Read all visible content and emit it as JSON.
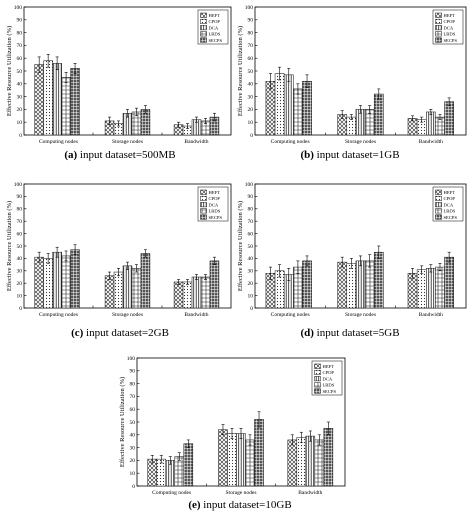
{
  "chart_data": [
    {
      "type": "bar",
      "caption_label": "(a)",
      "caption_text": "input dataset=500MB",
      "ylabel": "Effective Resource Utilization (%)",
      "ylim": [
        0,
        100
      ],
      "yticks": [
        0,
        10,
        20,
        30,
        40,
        50,
        60,
        70,
        80,
        90,
        100
      ],
      "categories": [
        "Computing nodes",
        "Storage nodes",
        "Bandwidth"
      ],
      "legend_position": "top-right",
      "series": [
        {
          "name": "HEFT",
          "values": [
            55,
            11,
            8
          ],
          "errors": [
            6,
            3,
            2
          ]
        },
        {
          "name": "CPOP",
          "values": [
            58,
            9,
            7
          ],
          "errors": [
            5,
            2,
            2
          ]
        },
        {
          "name": "DCA",
          "values": [
            56,
            17,
            12
          ],
          "errors": [
            5,
            3,
            2
          ]
        },
        {
          "name": "LBDS",
          "values": [
            45,
            18,
            11
          ],
          "errors": [
            4,
            3,
            2
          ]
        },
        {
          "name": "SECPS",
          "values": [
            52,
            20,
            14
          ],
          "errors": [
            4,
            3,
            3
          ]
        }
      ]
    },
    {
      "type": "bar",
      "caption_label": "(b)",
      "caption_text": "input dataset=1GB",
      "ylabel": "Effective Resource Utilization (%)",
      "ylim": [
        0,
        100
      ],
      "yticks": [
        0,
        10,
        20,
        30,
        40,
        50,
        60,
        70,
        80,
        90,
        100
      ],
      "categories": [
        "Computing nodes",
        "Storage nodes",
        "Bandwidth"
      ],
      "legend_position": "top-right",
      "series": [
        {
          "name": "HEFT",
          "values": [
            42,
            16,
            13
          ],
          "errors": [
            6,
            3,
            2
          ]
        },
        {
          "name": "CPOP",
          "values": [
            48,
            14,
            12
          ],
          "errors": [
            5,
            2,
            2
          ]
        },
        {
          "name": "DCA",
          "values": [
            47,
            20,
            18
          ],
          "errors": [
            5,
            3,
            2
          ]
        },
        {
          "name": "LBDS",
          "values": [
            36,
            20,
            14
          ],
          "errors": [
            4,
            3,
            2
          ]
        },
        {
          "name": "SECPS",
          "values": [
            42,
            32,
            26
          ],
          "errors": [
            5,
            4,
            3
          ]
        }
      ]
    },
    {
      "type": "bar",
      "caption_label": "(c)",
      "caption_text": "input dataset=2GB",
      "ylabel": "Effective Resource Utilization (%)",
      "ylim": [
        0,
        100
      ],
      "yticks": [
        0,
        10,
        20,
        30,
        40,
        50,
        60,
        70,
        80,
        90,
        100
      ],
      "categories": [
        "Computing nodes",
        "Storage nodes",
        "Bandwidth"
      ],
      "legend_position": "top-right",
      "series": [
        {
          "name": "HEFT",
          "values": [
            41,
            26,
            21
          ],
          "errors": [
            4,
            3,
            2
          ]
        },
        {
          "name": "CPOP",
          "values": [
            40,
            29,
            21
          ],
          "errors": [
            4,
            3,
            2
          ]
        },
        {
          "name": "DCA",
          "values": [
            45,
            34,
            25
          ],
          "errors": [
            4,
            3,
            2
          ]
        },
        {
          "name": "LBDS",
          "values": [
            42,
            32,
            25
          ],
          "errors": [
            4,
            3,
            2
          ]
        },
        {
          "name": "SECPS",
          "values": [
            47,
            44,
            38
          ],
          "errors": [
            4,
            3,
            3
          ]
        }
      ]
    },
    {
      "type": "bar",
      "caption_label": "(d)",
      "caption_text": "input dataset=5GB",
      "ylabel": "Effective Resource Utilization (%)",
      "ylim": [
        0,
        100
      ],
      "yticks": [
        0,
        10,
        20,
        30,
        40,
        50,
        60,
        70,
        80,
        90,
        100
      ],
      "categories": [
        "Computing nodes",
        "Storage nodes",
        "Bandwidth"
      ],
      "legend_position": "top-right",
      "series": [
        {
          "name": "HEFT",
          "values": [
            28,
            37,
            28
          ],
          "errors": [
            5,
            4,
            4
          ]
        },
        {
          "name": "CPOP",
          "values": [
            30,
            36,
            31
          ],
          "errors": [
            5,
            4,
            3
          ]
        },
        {
          "name": "DCA",
          "values": [
            27,
            38,
            32
          ],
          "errors": [
            5,
            4,
            3
          ]
        },
        {
          "name": "LBDS",
          "values": [
            33,
            38,
            33
          ],
          "errors": [
            5,
            5,
            3
          ]
        },
        {
          "name": "SECPS",
          "values": [
            38,
            45,
            41
          ],
          "errors": [
            4,
            5,
            4
          ]
        }
      ]
    },
    {
      "type": "bar",
      "caption_label": "(e)",
      "caption_text": "input dataset=10GB",
      "ylabel": "Effective Resource Utilization (%)",
      "ylim": [
        0,
        100
      ],
      "yticks": [
        0,
        10,
        20,
        30,
        40,
        50,
        60,
        70,
        80,
        90,
        100
      ],
      "categories": [
        "Computing nodes",
        "Storage nodes",
        "Bandwidth"
      ],
      "legend_position": "top-right",
      "series": [
        {
          "name": "HEFT",
          "values": [
            21,
            44,
            36
          ],
          "errors": [
            3,
            4,
            4
          ]
        },
        {
          "name": "CPOP",
          "values": [
            21,
            41,
            38
          ],
          "errors": [
            3,
            4,
            4
          ]
        },
        {
          "name": "DCA",
          "values": [
            20,
            41,
            39
          ],
          "errors": [
            3,
            4,
            4
          ]
        },
        {
          "name": "LBDS",
          "values": [
            23,
            36,
            36
          ],
          "errors": [
            3,
            4,
            4
          ]
        },
        {
          "name": "SECPS",
          "values": [
            33,
            52,
            45
          ],
          "errors": [
            3,
            6,
            5
          ]
        }
      ]
    }
  ],
  "patterns": {
    "HEFT": "crosshatch",
    "CPOP": "dots",
    "DCA": "vertical-lines",
    "LBDS": "grid",
    "SECPS": "dense-grid"
  }
}
